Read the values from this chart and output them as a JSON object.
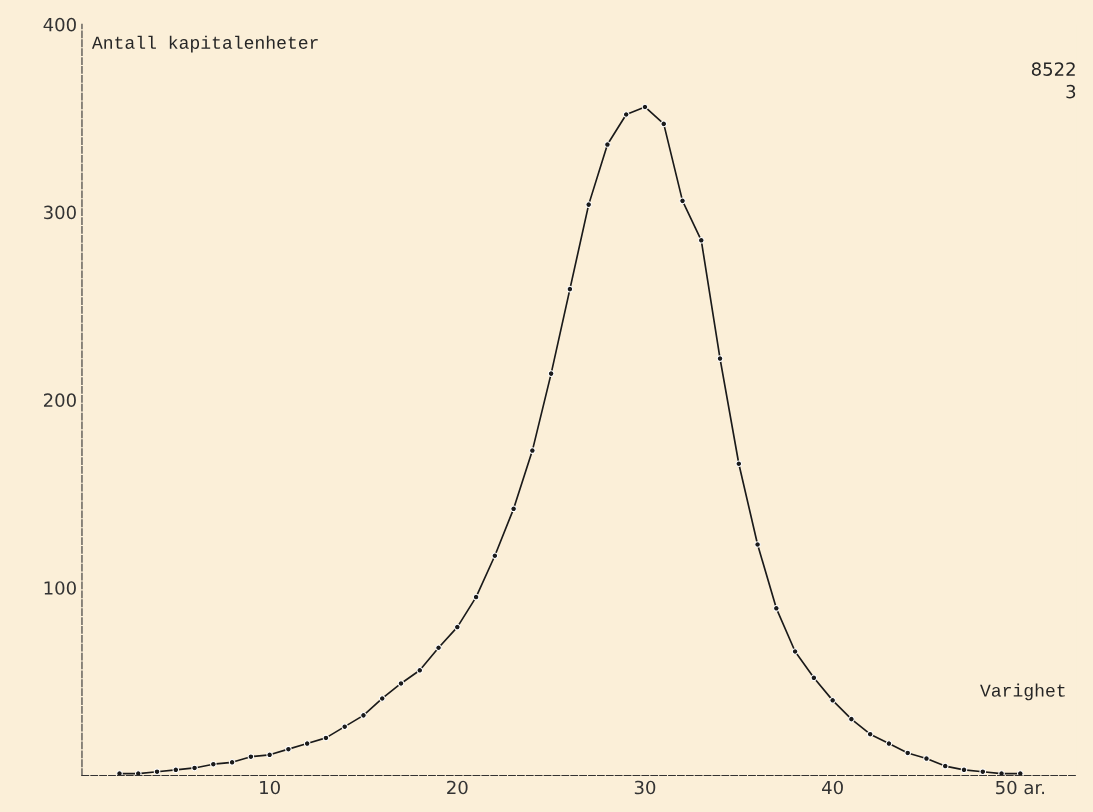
{
  "chart_data": {
    "type": "line",
    "ylabel": "Antall kapitalenheter",
    "xlabel": "Varighet",
    "annotations": [
      "8522",
      "3"
    ],
    "x": [
      2,
      3,
      4,
      5,
      6,
      7,
      8,
      9,
      10,
      11,
      12,
      13,
      14,
      15,
      16,
      17,
      18,
      19,
      20,
      21,
      22,
      23,
      24,
      25,
      26,
      27,
      28,
      29,
      30,
      31,
      32,
      33,
      34,
      35,
      36,
      37,
      38,
      39,
      40,
      41,
      42,
      43,
      44,
      45,
      46,
      47,
      48,
      49,
      50
    ],
    "series": [
      {
        "color": "#1a1a1a",
        "values": [
          1,
          1,
          2,
          3,
          4,
          6,
          7,
          10,
          11,
          14,
          17,
          20,
          26,
          32,
          41,
          49,
          56,
          68,
          79,
          95,
          117,
          142,
          173,
          214,
          259,
          304,
          336,
          352,
          356,
          347,
          306,
          285,
          222,
          166,
          123,
          89,
          66,
          52,
          40,
          30,
          22,
          17,
          12,
          9,
          5,
          3,
          2,
          1,
          1
        ]
      }
    ],
    "xlim": [
      0,
      53
    ],
    "xticks": [
      10,
      20,
      30,
      40,
      {
        "value": 50,
        "label": "50 ar."
      }
    ],
    "ylim": [
      0,
      400
    ],
    "yticks": [
      100,
      200,
      300,
      400
    ],
    "grid": false,
    "marker": "circle",
    "line_style": "solid",
    "legend": false
  }
}
